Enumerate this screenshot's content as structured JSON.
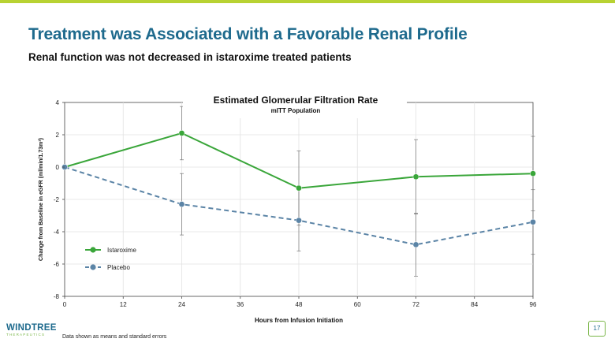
{
  "slide": {
    "title": "Treatment was Associated with a Favorable Renal Profile",
    "subtitle": "Renal function was not decreased in istaroxime treated patients",
    "footnote": "Data shown as means and standard errors",
    "page_number": "17",
    "logo_main": "WINDTREE",
    "logo_sub": "THERAPEUTICS"
  },
  "colors": {
    "accent_bar": "#b8d232",
    "title": "#1e6a8d",
    "istaroxime": "#3aa63a",
    "placebo": "#5b84a6"
  },
  "chart_data": {
    "type": "line",
    "title": "Estimated Glomerular Filtration Rate",
    "subtitle": "mITT Population",
    "xlabel": "Hours from Infusion Initiation",
    "ylabel": "Change from Baseline in eGFR (ml/min/1.73m²)",
    "x": [
      0,
      24,
      48,
      72,
      96
    ],
    "xticks": [
      0,
      12,
      24,
      36,
      48,
      60,
      72,
      84,
      96
    ],
    "yticks": [
      4,
      2,
      0,
      -2,
      -4,
      -6,
      -8
    ],
    "xlim": [
      0,
      96
    ],
    "ylim": [
      -8,
      4
    ],
    "grid": true,
    "legend": "lower-left",
    "series": [
      {
        "name": "Istaroxime",
        "style": "solid",
        "values": [
          0,
          2.1,
          -1.3,
          -0.6,
          -0.4
        ],
        "errors": [
          0,
          1.65,
          2.3,
          2.3,
          2.3
        ]
      },
      {
        "name": "Placebo",
        "style": "dashed",
        "values": [
          0,
          -2.3,
          -3.3,
          -4.8,
          -3.4
        ],
        "errors": [
          0,
          1.9,
          1.9,
          1.95,
          2.0
        ]
      }
    ]
  }
}
